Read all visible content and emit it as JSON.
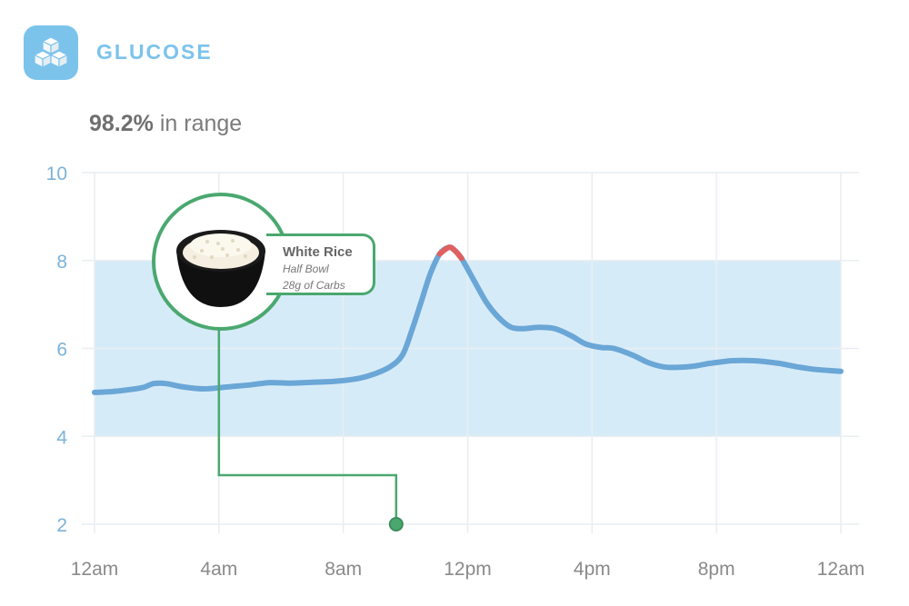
{
  "header": {
    "title": "GLUCOSE",
    "icon": "sugar-cubes-icon",
    "accent_color": "#7cc3ec"
  },
  "summary": {
    "percent": "98.2%",
    "label": "in range"
  },
  "annotation": {
    "title": "White Rice",
    "line1": "Half Bowl",
    "line2": "28g of Carbs",
    "icon": "rice-bowl-icon",
    "marker_time": 9.7,
    "marker_value": 2,
    "anchor_time": 4
  },
  "chart_data": {
    "type": "line",
    "x_tick_labels": [
      "12am",
      "4am",
      "8am",
      "12pm",
      "4pm",
      "8pm",
      "12am"
    ],
    "x_tick_hours": [
      0,
      4,
      8,
      12,
      16,
      20,
      24
    ],
    "y_ticks": [
      2,
      4,
      6,
      8,
      10
    ],
    "xlim": [
      0,
      24
    ],
    "ylim": [
      2,
      10
    ],
    "target_range": [
      4,
      8
    ],
    "grid": true,
    "line_color": "#6aa6d6",
    "high_color": "#e06060",
    "range_fill": "#d6ebf8",
    "series": [
      {
        "x": [
          0,
          0.6,
          1.2,
          1.6,
          1.9,
          2.3,
          2.8,
          3.5,
          4.2,
          5,
          5.6,
          6.3,
          7,
          7.7,
          8.5,
          9,
          9.5,
          9.9,
          10.2,
          10.5,
          10.8,
          11.1,
          11.4,
          11.6,
          11.8,
          12.2,
          12.6,
          13,
          13.4,
          13.8,
          14.3,
          14.8,
          15.3,
          15.8,
          16.3,
          16.7,
          17.3,
          17.8,
          18.3,
          18.8,
          19.3,
          19.8,
          20.5,
          21.2,
          22,
          22.6,
          23.2,
          24
        ],
        "y": [
          5.0,
          5.02,
          5.07,
          5.12,
          5.2,
          5.2,
          5.13,
          5.08,
          5.12,
          5.17,
          5.22,
          5.21,
          5.23,
          5.25,
          5.32,
          5.42,
          5.58,
          5.85,
          6.4,
          7.05,
          7.7,
          8.15,
          8.3,
          8.22,
          8.05,
          7.55,
          7.05,
          6.7,
          6.48,
          6.45,
          6.48,
          6.45,
          6.3,
          6.1,
          6.02,
          6.0,
          5.85,
          5.68,
          5.58,
          5.57,
          5.6,
          5.66,
          5.72,
          5.72,
          5.66,
          5.58,
          5.52,
          5.48
        ]
      }
    ]
  }
}
